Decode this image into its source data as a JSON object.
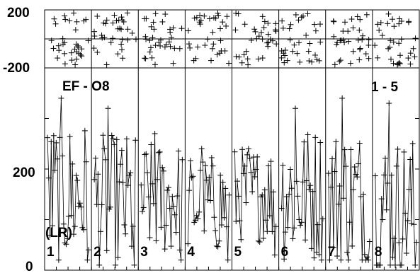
{
  "chart_data": [
    {
      "type": "scatter",
      "panel": "residuals",
      "ylim": [
        -200,
        200
      ],
      "y_tick_labels": [
        "200",
        "-200"
      ],
      "x_segments": 8,
      "approx_points_per_segment": 34,
      "y_distribution": "uniform across range (approximately)",
      "series": [
        {
          "name": "",
          "marker": "+",
          "color": "#000000"
        }
      ]
    },
    {
      "type": "line",
      "panel": "main",
      "ylim": [
        0,
        400
      ],
      "y_tick_labels": [
        "200",
        "0"
      ],
      "annotations": {
        "title_left": "EF - O8",
        "title_right": "1 - 5",
        "lr_label": "(LR)"
      },
      "segment_labels": [
        "1",
        "2",
        "3",
        "4",
        "5",
        "6",
        "7",
        "8"
      ],
      "segments_summary": [
        {
          "label": "1",
          "min": 20,
          "max": 340,
          "typical": 150
        },
        {
          "label": "2",
          "min": 10,
          "max": 320,
          "typical": 130
        },
        {
          "label": "3",
          "min": 20,
          "max": 270,
          "typical": 140
        },
        {
          "label": "4",
          "min": 20,
          "max": 240,
          "typical": 130
        },
        {
          "label": "5",
          "min": 30,
          "max": 240,
          "typical": 150
        },
        {
          "label": "6",
          "min": 20,
          "max": 320,
          "typical": 150
        },
        {
          "label": "7",
          "min": 20,
          "max": 340,
          "typical": 140
        },
        {
          "label": "8",
          "min": 10,
          "max": 330,
          "typical": 120
        }
      ],
      "approx_points_per_segment": 34,
      "series": [
        {
          "name": "",
          "marker": "+",
          "color": "#000000"
        }
      ]
    }
  ]
}
